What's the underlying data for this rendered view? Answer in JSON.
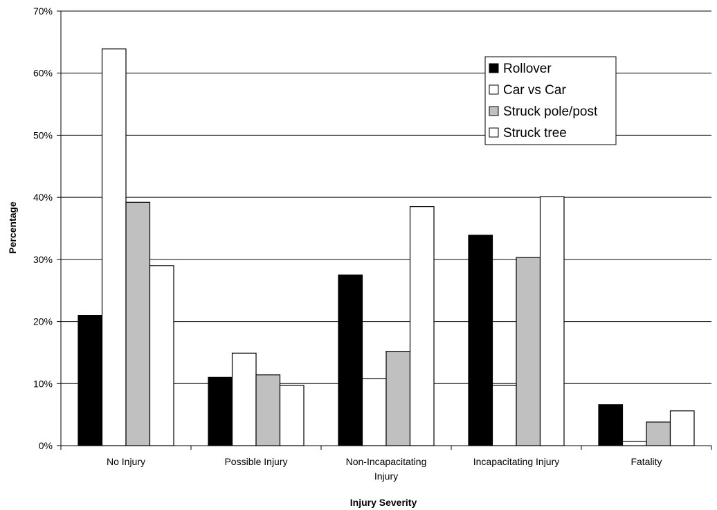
{
  "chart_data": {
    "type": "bar",
    "title": "",
    "xlabel": "Injury Severity",
    "ylabel": "Percentage",
    "ylim": [
      0,
      70
    ],
    "yticks": [
      0,
      10,
      20,
      30,
      40,
      50,
      60,
      70
    ],
    "ytick_labels": [
      "0%",
      "10%",
      "20%",
      "30%",
      "40%",
      "50%",
      "60%",
      "70%"
    ],
    "grid": true,
    "legend_position": "top-right",
    "categories": [
      [
        "No Injury"
      ],
      [
        "Possible Injury"
      ],
      [
        "Non-Incapacitating",
        "Injury"
      ],
      [
        "Incapacitating Injury"
      ],
      [
        "Fatality"
      ]
    ],
    "series": [
      {
        "name": "Rollover",
        "color": "#000000",
        "values": [
          21.0,
          11.0,
          27.5,
          33.9,
          6.6
        ]
      },
      {
        "name": "Car vs Car",
        "color": "#ffffff",
        "values": [
          63.9,
          14.9,
          10.8,
          9.7,
          0.7
        ]
      },
      {
        "name": "Struck pole/post",
        "color": "#c0c0c0",
        "values": [
          39.2,
          11.4,
          15.2,
          30.3,
          3.8
        ]
      },
      {
        "name": "Struck tree",
        "color": "#ffffff",
        "values": [
          29.0,
          9.7,
          38.5,
          40.1,
          5.6
        ]
      }
    ]
  }
}
